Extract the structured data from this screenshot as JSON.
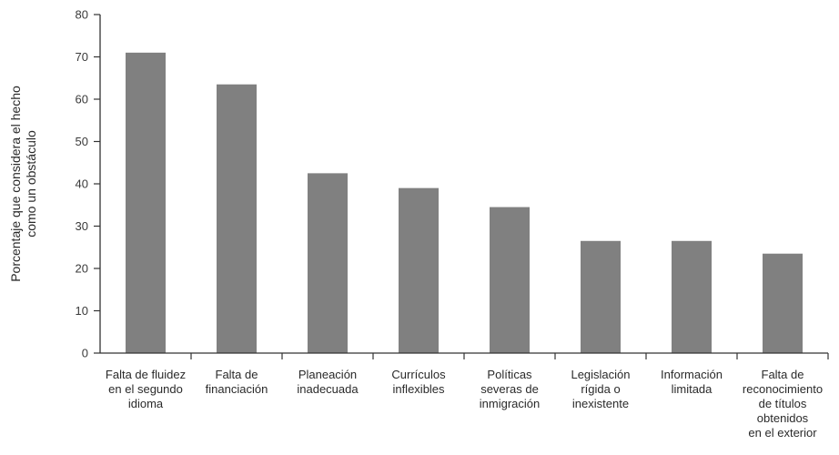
{
  "chart_data": {
    "type": "bar",
    "title": "",
    "xlabel": "",
    "ylabel": [
      "Porcentaje que considera el hecho",
      "como un obstáculo"
    ],
    "ylim": [
      0,
      80
    ],
    "yticks": [
      0,
      10,
      20,
      30,
      40,
      50,
      60,
      70,
      80
    ],
    "grid": false,
    "categories": [
      [
        "Falta de fluidez",
        "en el segundo",
        "idioma"
      ],
      [
        "Falta de",
        "financiación"
      ],
      [
        "Planeación",
        "inadecuada"
      ],
      [
        "Currículos",
        "inflexibles"
      ],
      [
        "Políticas",
        "severas de",
        "inmigración"
      ],
      [
        "Legislación",
        "rígida o",
        "inexistente"
      ],
      [
        "Información",
        "limitada"
      ],
      [
        "Falta de",
        "reconocimiento",
        "de títulos",
        "obtenidos",
        "en el exterior"
      ]
    ],
    "values": [
      71,
      63.5,
      42.5,
      39,
      34.5,
      26.5,
      26.5,
      23.5
    ],
    "colors": {
      "bar": "#808080",
      "axis": "#333333"
    }
  }
}
